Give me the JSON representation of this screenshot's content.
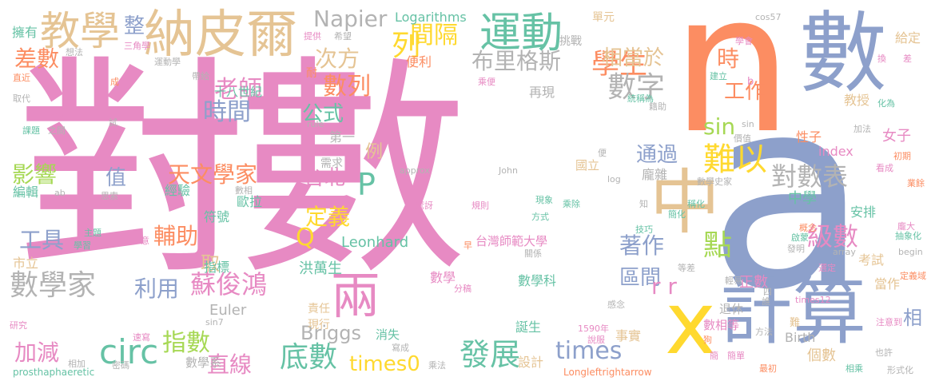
{
  "words": {
    "w0": "對數",
    "w1": "n",
    "w2": "a",
    "w3": "數",
    "w4": "納皮爾",
    "w5": "計算",
    "w6": "運動",
    "w7": "教學",
    "w8": "中",
    "w9": "x",
    "w10": "學生",
    "w11": "兩",
    "w12": "點",
    "w13": "circ",
    "w14": "數字",
    "w15": "數學家",
    "w16": "times",
    "w17": "發展",
    "w18": "底數",
    "w19": "對數表",
    "w20": "Napier",
    "w21": "列",
    "w22": "間隔",
    "w23": "布里格斯",
    "w24": "蘇俊鴻",
    "w25": "指數",
    "w26": "天文學家",
    "w27": "定義",
    "w28": "難以",
    "w29": "老師",
    "w30": "時間",
    "w31": "Briggs",
    "w32": "times0",
    "w33": "數列",
    "w34": "次方",
    "w35": "相當於",
    "w36": "級數",
    "w37": "輔助",
    "w38": "加減",
    "w39": "直線",
    "w40": "利用",
    "w41": "影響",
    "w42": "工具",
    "w43": "差數",
    "w44": "區間",
    "w45": "著作",
    "w46": "通過",
    "w47": "公式",
    "w48": "工作",
    "w49": "sin",
    "w50": "時",
    "w51": "r r",
    "w52": "P",
    "w53": "Q",
    "w54": "整",
    "w55": "值",
    "w56": "取",
    "w57": "例",
    "w58": "台北",
    "w59": "Leonhard",
    "w60": "Logarithms",
    "w61": "相",
    "w62": "洪萬生",
    "w63": "市立",
    "w64": "編輯",
    "w65": "台灣師範大學",
    "w66": "正數",
    "w67": "Euler",
    "w68": "數學科",
    "w69": "數學",
    "w70": "設計",
    "w71": "事實",
    "w72": "個數",
    "w73": "Birth",
    "w74": "index",
    "w75": "性子",
    "w76": "第一",
    "w77": "龐雜",
    "w78": "國立",
    "w79": "再現",
    "w80": "挑戰",
    "w81": "便利",
    "w82": "需求",
    "w83": "符號",
    "w84": "經驗",
    "w85": "歐拉",
    "w86": "指標",
    "w87": "十八世紀",
    "w88": "擁有",
    "w89": "中學",
    "w90": "安排",
    "w91": "考試",
    "w92": "當作",
    "w93": "教授",
    "w94": "女子",
    "w95": "給定",
    "w96": "退休",
    "w97": "數相等",
    "w98": "誕生",
    "w99": "消失",
    "w100": "現行",
    "w101": "責任",
    "w102": "數學系",
    "w103": "單元",
    "w104": "耐",
    "w105": "提供",
    "w106": "希望",
    "w107": "三角學",
    "w108": "運動學",
    "w109": "帶給",
    "w110": "成",
    "w111": "取代",
    "w112": "本文",
    "w113": "課題",
    "w114": "之間",
    "w115": "研究",
    "w116": "主題",
    "w117": "學習",
    "w118": "意",
    "w119": "prosthaphaeretic",
    "w120": "Longleftrightarrow",
    "w121": "approx",
    "w122": "John",
    "w123": "log",
    "w124": "rule",
    "w125": "cos57",
    "w126": "array",
    "w127": "begin",
    "w128": "times12",
    "w129": "sin7",
    "w130": "1590年",
    "w131": "形式化",
    "w132": "也許",
    "w133": "注意到",
    "w134": "方法",
    "w135": "最初",
    "w136": "簡單",
    "w137": "相乘",
    "w138": "乘法",
    "w139": "說服",
    "w140": "分稿",
    "w141": "驚訝",
    "w142": "規則",
    "w143": "方式",
    "w144": "乘除",
    "w145": "現象",
    "w146": "簡化",
    "w147": "稱化",
    "w148": "技巧",
    "w149": "關係",
    "w150": "感念",
    "w151": "概念",
    "w152": "龐大",
    "w153": "抽象化",
    "w154": "啟蒙",
    "w155": "發明",
    "w156": "選定",
    "w157": "看成",
    "w158": "初期",
    "w159": "加法",
    "w160": "化為",
    "w161": "籍助",
    "w162": "統稱為",
    "w163": "數學史家",
    "w164": "學會",
    "w165": "建立",
    "w166": "換",
    "w167": "差",
    "w168": "簡",
    "w169": "誰",
    "w170": "四",
    "w171": "狗",
    "w172": "知",
    "w173": "早",
    "w174": "便",
    "w175": "試",
    "w176": "業餘",
    "w177": "等差",
    "w178": "輕易",
    "w179": "定義域",
    "w180": "ab",
    "w181": "思索",
    "w182": "數相",
    "w183": "速寫",
    "w184": "相加",
    "w185": "密碼",
    "w186": "寫成",
    "w187": "乘便",
    "w188": "想法",
    "w189": "直近",
    "w190": "b",
    "w191": "價值",
    "w192": "sin",
    "w193": "難"
  },
  "colors": {
    "pink": "#e78ac3",
    "blue": "#8da0cb",
    "orange": "#fc8d62",
    "green": "#a6d854",
    "teal": "#66c2a5",
    "yellow": "#ffd92f",
    "tan": "#e5c494",
    "gray": "#b3b3b3"
  }
}
